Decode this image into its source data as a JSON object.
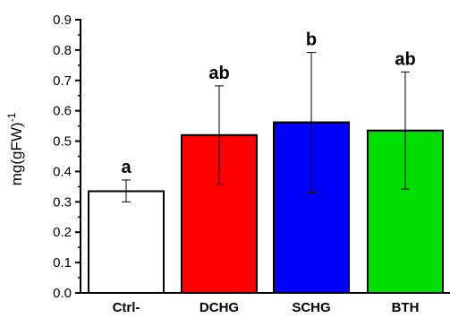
{
  "chart_data": {
    "type": "bar",
    "categories": [
      "Ctrl-",
      "DCHG",
      "SCHG",
      "BTH"
    ],
    "values": [
      0.335,
      0.52,
      0.562,
      0.535
    ],
    "error_low": [
      0.3,
      0.358,
      0.332,
      0.342
    ],
    "error_high": [
      0.372,
      0.682,
      0.792,
      0.728
    ],
    "significance_labels": [
      "a",
      "ab",
      "b",
      "ab"
    ],
    "bar_colors": [
      "#ffffff",
      "#ff0000",
      "#0000ff",
      "#00dd00"
    ],
    "ylabel": "mg(gFW)",
    "ylabel_superscript": "-1",
    "ylim": [
      0,
      0.9
    ],
    "yticks": [
      "0.0",
      "0.1",
      "0.2",
      "0.3",
      "0.4",
      "0.5",
      "0.6",
      "0.7",
      "0.8",
      "0.9"
    ],
    "grid": false,
    "legend": "none"
  }
}
